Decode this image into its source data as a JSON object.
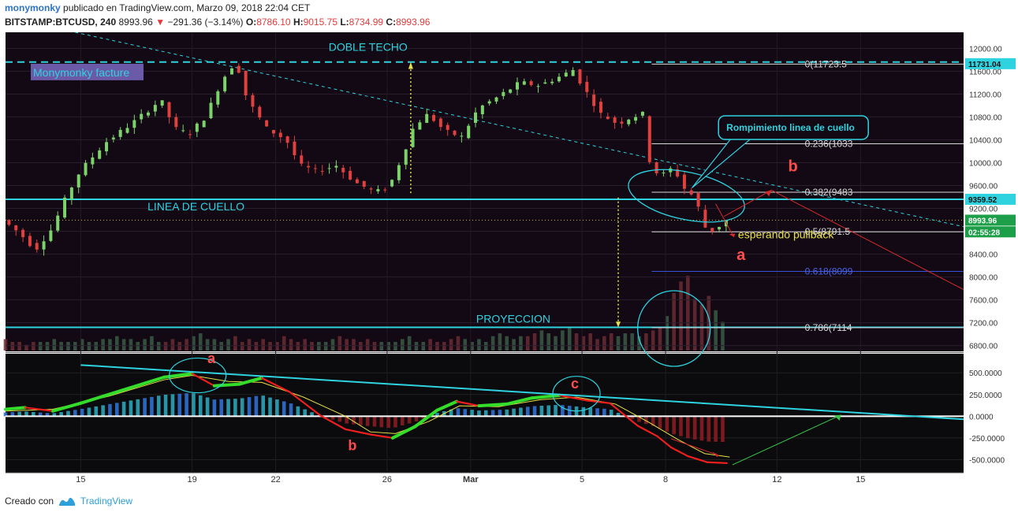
{
  "header": {
    "author": "monymonky",
    "published": "publicado en TradingView.com, Marzo 09, 2018 22:04 CET",
    "symbol": "BITSTAMP:BTCUSD, 240",
    "last": "8993.96",
    "change": "−291.36 (−3.14%)",
    "open_label": "O:",
    "open": "8786.10",
    "high_label": "H:",
    "high": "9015.75",
    "low_label": "L:",
    "low": "8734.99",
    "close_label": "C:",
    "close": "8993.96"
  },
  "footer": {
    "created_with": "Creado con",
    "brand": "TradingView"
  },
  "colors": {
    "chart_bg": "#120914",
    "price_scale_bg": "#ffffff",
    "bull": "#7bd36a",
    "bear": "#e0403e",
    "cyan": "#2fd3df",
    "yellow": "#e8e24a",
    "red_line": "#d42a2a",
    "green_line": "#39c84a",
    "fib": "#d9d9d9",
    "fib618": "#3a52d8"
  },
  "chart_data": [
    {
      "type": "candlestick",
      "panel": "price",
      "y_axis_ticks": [
        "12000.00",
        "11600.00",
        "11200.00",
        "10800.00",
        "10400.00",
        "10000.00",
        "9600.00",
        "9200.00",
        "8800.00",
        "8400.00",
        "8000.00",
        "7600.00",
        "7200.00",
        "6800.00"
      ],
      "ylim": [
        6700,
        12280
      ],
      "x_ticks": [
        {
          "label": "15",
          "day": 3
        },
        {
          "label": "19",
          "day": 7
        },
        {
          "label": "22",
          "day": 10
        },
        {
          "label": "26",
          "day": 14
        },
        {
          "label": "Mar",
          "day": 17
        },
        {
          "label": "5",
          "day": 21
        },
        {
          "label": "8",
          "day": 24
        },
        {
          "label": "12",
          "day": 28
        },
        {
          "label": "15",
          "day": 31
        }
      ],
      "xlim_days": [
        0.3,
        34.7
      ],
      "price_path": [
        [
          0.3,
          9000
        ],
        [
          0.9,
          8780
        ],
        [
          1.5,
          8480
        ],
        [
          2.1,
          8850
        ],
        [
          2.6,
          9400
        ],
        [
          3.1,
          9850
        ],
        [
          4.0,
          10350
        ],
        [
          5.0,
          10700
        ],
        [
          6.0,
          11100
        ],
        [
          6.5,
          10600
        ],
        [
          7.0,
          10500
        ],
        [
          7.6,
          10800
        ],
        [
          8.2,
          11450
        ],
        [
          8.7,
          11780
        ],
        [
          9.1,
          11100
        ],
        [
          9.8,
          10600
        ],
        [
          10.5,
          10400
        ],
        [
          11.0,
          9950
        ],
        [
          11.6,
          9850
        ],
        [
          12.3,
          9950
        ],
        [
          13.0,
          9650
        ],
        [
          13.7,
          9480
        ],
        [
          14.2,
          9580
        ],
        [
          14.7,
          10150
        ],
        [
          15.1,
          10650
        ],
        [
          15.6,
          10850
        ],
        [
          16.2,
          10550
        ],
        [
          16.8,
          10450
        ],
        [
          17.4,
          10950
        ],
        [
          18.1,
          11150
        ],
        [
          18.9,
          11400
        ],
        [
          19.6,
          11350
        ],
        [
          20.3,
          11500
        ],
        [
          20.8,
          11620
        ],
        [
          21.3,
          11220
        ],
        [
          21.8,
          10850
        ],
        [
          22.4,
          10680
        ],
        [
          22.9,
          10800
        ],
        [
          23.3,
          10850
        ],
        [
          23.6,
          9880
        ],
        [
          24.0,
          9780
        ],
        [
          24.4,
          9920
        ],
        [
          24.8,
          9550
        ],
        [
          25.2,
          9380
        ],
        [
          25.5,
          8880
        ],
        [
          25.9,
          8790
        ],
        [
          26.2,
          8993.96
        ]
      ],
      "volume_profile": [
        4,
        3,
        3,
        2,
        3,
        2,
        3,
        3,
        4,
        3,
        3,
        5,
        3,
        4,
        3,
        3,
        4,
        3,
        4,
        5,
        4,
        4,
        3,
        3,
        4,
        5,
        3,
        3,
        4,
        4,
        3,
        4,
        5,
        6,
        4,
        3,
        4,
        3,
        4,
        5,
        3,
        3,
        4,
        3,
        4,
        3,
        3,
        4,
        5,
        4,
        3,
        4,
        3,
        4,
        3,
        3,
        4,
        5,
        4,
        3,
        4,
        3,
        4,
        3,
        3,
        4,
        3,
        3,
        4,
        5,
        3,
        4,
        3,
        4,
        3,
        3,
        4,
        3,
        5,
        4,
        3,
        4,
        3,
        4,
        5,
        6,
        5,
        4,
        5,
        4,
        5,
        6,
        7,
        6,
        5,
        6,
        7,
        8,
        6,
        5,
        6,
        5,
        4,
        5,
        6,
        5,
        6,
        7,
        6,
        5,
        6,
        7,
        8,
        9,
        12,
        20,
        24,
        26,
        18,
        14,
        16,
        19,
        14,
        10,
        8
      ],
      "volume_max": 26,
      "horizontal_levels": [
        {
          "price": 11760,
          "style": "dashed",
          "color": "#2fd3df",
          "label": "DOBLE TECHO"
        },
        {
          "price": 9359.52,
          "style": "solid",
          "color": "#2fd3df",
          "label": "LINEA DE CUELLO"
        },
        {
          "price": 7120,
          "style": "solid",
          "color": "#2fd3df",
          "label": "PROYECCION"
        }
      ],
      "fibonacci": [
        {
          "label": "0(11723.5",
          "price": 11723.5
        },
        {
          "label": "0.236(1033",
          "price": 10330
        },
        {
          "label": "0.382(9483",
          "price": 9483
        },
        {
          "label": "0.5(8791.5",
          "price": 8791.5
        },
        {
          "label": "0.618(8099",
          "price": 8099
        },
        {
          "label": "0.786(7114",
          "price": 7114
        }
      ],
      "price_badges": [
        {
          "text": "11731.04",
          "price": 11731.04,
          "bg": "#2fd3df",
          "fg": "#101010"
        },
        {
          "text": "9359.52",
          "price": 9359.52,
          "bg": "#2fd3df",
          "fg": "#101010"
        },
        {
          "text": "8993.96",
          "price": 8993.96,
          "bg": "#1d9e48",
          "fg": "#ffffff"
        },
        {
          "text": "02:55:28",
          "price": 8790,
          "bg": "#1d9e48",
          "fg": "#ffffff"
        }
      ],
      "annotations": {
        "facture_box": "Monymonky facture",
        "callout": "Rompimiento linea de cuello",
        "pullback": "esperando pullback",
        "wave_a": "a",
        "wave_b": "b"
      }
    },
    {
      "type": "oscillator",
      "panel": "indicator",
      "y_axis_ticks": [
        "500.0000",
        "250.0000",
        "0.0000",
        "-250.0000",
        "-500.0000"
      ],
      "ylim": [
        -650,
        720
      ],
      "series": [
        {
          "values": [
            [
              0.3,
              80
            ],
            [
              1.0,
              100
            ],
            [
              2.0,
              60
            ],
            [
              3.0,
              150
            ],
            [
              4.5,
              300
            ],
            [
              6.0,
              450
            ],
            [
              7.0,
              490
            ],
            [
              7.8,
              350
            ],
            [
              8.7,
              370
            ],
            [
              9.5,
              440
            ],
            [
              10.5,
              280
            ],
            [
              11.6,
              10
            ],
            [
              12.5,
              -150
            ],
            [
              13.4,
              -210
            ],
            [
              14.2,
              -250
            ],
            [
              15.0,
              -120
            ],
            [
              15.8,
              70
            ],
            [
              16.5,
              170
            ],
            [
              17.3,
              120
            ],
            [
              18.3,
              140
            ],
            [
              19.2,
              210
            ],
            [
              20.2,
              240
            ],
            [
              21.2,
              180
            ],
            [
              22.0,
              150
            ],
            [
              23.0,
              -110
            ],
            [
              23.7,
              -230
            ],
            [
              24.2,
              -360
            ],
            [
              24.8,
              -460
            ],
            [
              25.5,
              -530
            ],
            [
              26.2,
              -540
            ]
          ],
          "colored": true
        },
        {
          "values": [
            [
              0.3,
              60
            ],
            [
              2.0,
              80
            ],
            [
              4.0,
              230
            ],
            [
              6.0,
              420
            ],
            [
              7.0,
              470
            ],
            [
              8.3,
              400
            ],
            [
              9.5,
              390
            ],
            [
              11.0,
              220
            ],
            [
              12.5,
              0
            ],
            [
              13.4,
              -180
            ],
            [
              14.3,
              -200
            ],
            [
              15.5,
              -60
            ],
            [
              16.6,
              120
            ],
            [
              18.0,
              110
            ],
            [
              19.5,
              190
            ],
            [
              20.8,
              220
            ],
            [
              22.2,
              140
            ],
            [
              23.4,
              -70
            ],
            [
              24.4,
              -260
            ],
            [
              25.4,
              -430
            ],
            [
              26.3,
              -470
            ]
          ],
          "colored": false
        }
      ],
      "annotations": {
        "a": "a",
        "b": "b",
        "c": "c"
      }
    }
  ]
}
